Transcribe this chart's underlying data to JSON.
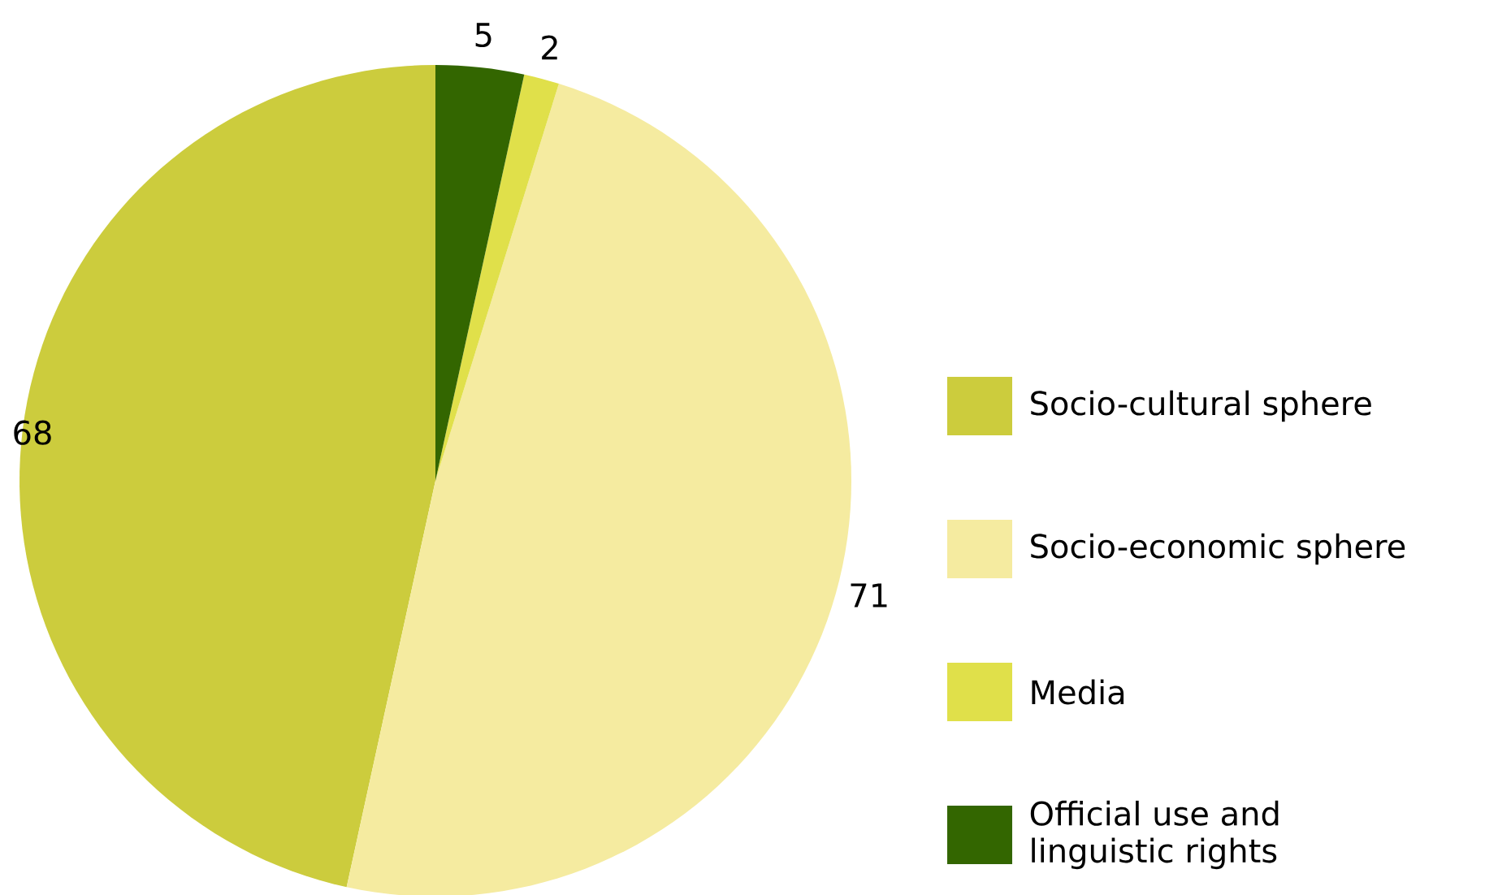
{
  "chart_data": {
    "type": "pie",
    "categories": [
      "Socio-cultural sphere",
      "Socio-economic sphere",
      "Media",
      "Official use and linguistic rights"
    ],
    "values": [
      68,
      71,
      2,
      5
    ],
    "colors": [
      "#cccc3d",
      "#f5eba0",
      "#e0e04a",
      "#336600"
    ],
    "data_labels": true,
    "legend": "right"
  }
}
